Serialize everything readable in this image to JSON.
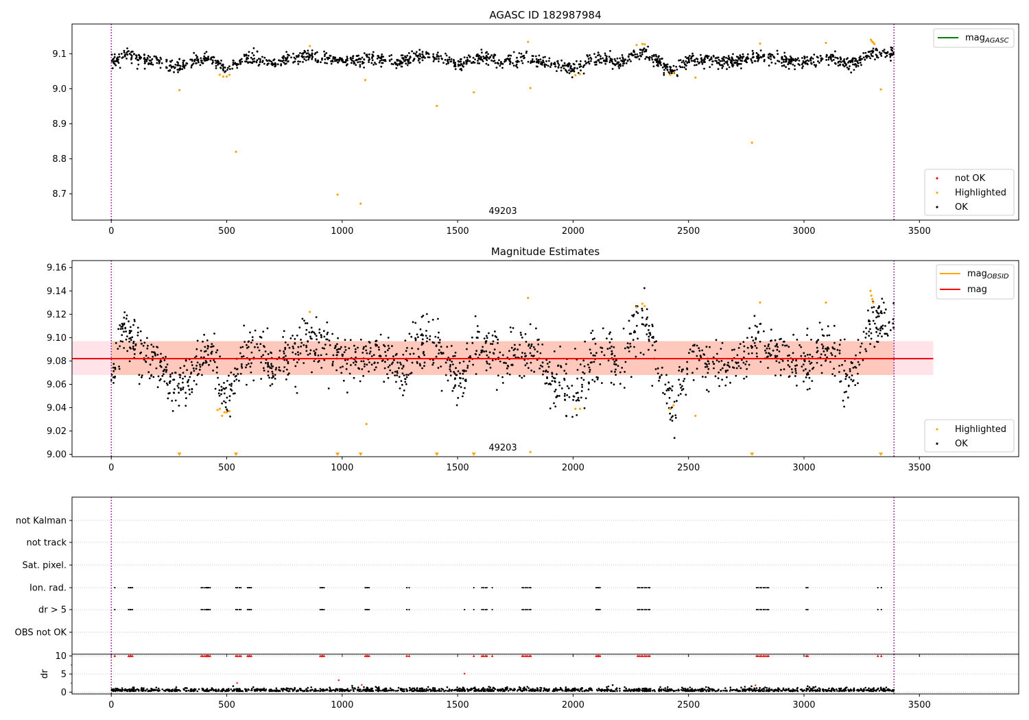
{
  "colors": {
    "ok": "#000000",
    "highlighted": "#ffa500",
    "not_ok": "#ff0000",
    "mag_agasc_line": "#008000",
    "mag_obsid_line": "#ffa500",
    "mag_line": "#ff0000",
    "vline": "#800080",
    "band_outer": "#ffc0cb",
    "band_inner": "#ffa07a"
  },
  "chart_data": [
    {
      "type": "scatter",
      "title": "AGASC ID 182987984",
      "xlim": [
        -170,
        3930
      ],
      "ylim": [
        8.625,
        9.185
      ],
      "xticks": [
        0,
        500,
        1000,
        1500,
        2000,
        2500,
        3000,
        3500
      ],
      "yticks": [
        8.7,
        8.8,
        8.9,
        9.0,
        9.1
      ],
      "ytick_labels": [
        "8.7",
        "8.8",
        "8.9",
        "9.0",
        "9.1"
      ],
      "annotation": "49203",
      "vlines": [
        0,
        3390
      ],
      "trend": [
        [
          0,
          9.072
        ],
        [
          60,
          9.102
        ],
        [
          120,
          9.085
        ],
        [
          200,
          9.078
        ],
        [
          280,
          9.062
        ],
        [
          360,
          9.075
        ],
        [
          430,
          9.088
        ],
        [
          500,
          9.055
        ],
        [
          540,
          9.072
        ],
        [
          600,
          9.09
        ],
        [
          700,
          9.075
        ],
        [
          860,
          9.093
        ],
        [
          950,
          9.083
        ],
        [
          1050,
          9.078
        ],
        [
          1150,
          9.088
        ],
        [
          1250,
          9.072
        ],
        [
          1320,
          9.092
        ],
        [
          1420,
          9.088
        ],
        [
          1500,
          9.068
        ],
        [
          1600,
          9.092
        ],
        [
          1700,
          9.078
        ],
        [
          1800,
          9.088
        ],
        [
          1900,
          9.07
        ],
        [
          2000,
          9.058
        ],
        [
          2080,
          9.078
        ],
        [
          2150,
          9.09
        ],
        [
          2200,
          9.074
        ],
        [
          2270,
          9.1
        ],
        [
          2320,
          9.102
        ],
        [
          2400,
          9.062
        ],
        [
          2440,
          9.052
        ],
        [
          2500,
          9.082
        ],
        [
          2600,
          9.078
        ],
        [
          2700,
          9.078
        ],
        [
          2800,
          9.092
        ],
        [
          2900,
          9.082
        ],
        [
          3000,
          9.078
        ],
        [
          3100,
          9.088
        ],
        [
          3200,
          9.068
        ],
        [
          3300,
          9.105
        ],
        [
          3390,
          9.098
        ]
      ],
      "ok_count": 1600,
      "ok_spread": 0.009,
      "highlighted": [
        [
          295,
          8.996
        ],
        [
          470,
          9.04
        ],
        [
          485,
          9.035
        ],
        [
          500,
          9.035
        ],
        [
          512,
          9.04
        ],
        [
          540,
          8.82
        ],
        [
          860,
          9.122
        ],
        [
          980,
          8.698
        ],
        [
          1080,
          8.672
        ],
        [
          1100,
          9.025
        ],
        [
          1410,
          8.951
        ],
        [
          1570,
          8.99
        ],
        [
          1805,
          9.134
        ],
        [
          1815,
          9.002
        ],
        [
          2010,
          9.039
        ],
        [
          2030,
          9.042
        ],
        [
          2275,
          9.125
        ],
        [
          2300,
          9.128
        ],
        [
          2310,
          9.127
        ],
        [
          2420,
          9.04
        ],
        [
          2435,
          9.045
        ],
        [
          2530,
          9.032
        ],
        [
          2775,
          8.846
        ],
        [
          2810,
          9.129
        ],
        [
          3095,
          9.131
        ],
        [
          3290,
          9.14
        ],
        [
          3295,
          9.135
        ],
        [
          3300,
          9.132
        ],
        [
          3305,
          9.128
        ],
        [
          3333,
          8.998
        ]
      ],
      "legend_lines": [
        {
          "name": "mag",
          "sub": "AGASC",
          "color": "#008000"
        }
      ],
      "legend_points": [
        "not OK",
        "Highlighted",
        "OK"
      ]
    },
    {
      "type": "scatter",
      "title": "Magnitude Estimates",
      "xlim": [
        -170,
        3930
      ],
      "ylim": [
        8.998,
        9.166
      ],
      "xticks": [
        0,
        500,
        1000,
        1500,
        2000,
        2500,
        3000,
        3500
      ],
      "yticks": [
        9.0,
        9.02,
        9.04,
        9.06,
        9.08,
        9.1,
        9.12,
        9.14,
        9.16
      ],
      "ytick_labels": [
        "9.00",
        "9.02",
        "9.04",
        "9.06",
        "9.08",
        "9.10",
        "9.12",
        "9.14",
        "9.16"
      ],
      "annotation": "49203",
      "vlines": [
        0,
        3390
      ],
      "mag": 9.082,
      "band_outer": {
        "x": [
          -170,
          3560
        ],
        "y": [
          9.068,
          9.097
        ]
      },
      "band_inner": {
        "x": [
          0,
          3390
        ],
        "y": [
          9.068,
          9.097
        ]
      },
      "ok_count": 1600,
      "ok_spread": 0.011,
      "highlighted": [
        [
          460,
          9.038
        ],
        [
          470,
          9.039
        ],
        [
          480,
          9.033
        ],
        [
          490,
          9.036
        ],
        [
          500,
          9.036
        ],
        [
          512,
          9.037
        ],
        [
          860,
          9.122
        ],
        [
          1105,
          9.026
        ],
        [
          1805,
          9.134
        ],
        [
          1815,
          9.002
        ],
        [
          2010,
          9.039
        ],
        [
          2030,
          9.039
        ],
        [
          2275,
          9.126
        ],
        [
          2300,
          9.129
        ],
        [
          2310,
          9.127
        ],
        [
          2420,
          9.039
        ],
        [
          2435,
          9.042
        ],
        [
          2530,
          9.033
        ],
        [
          2810,
          9.13
        ],
        [
          3095,
          9.13
        ],
        [
          3288,
          9.14
        ],
        [
          3292,
          9.136
        ],
        [
          3296,
          9.133
        ],
        [
          3300,
          9.13
        ]
      ],
      "highlighted_floor": [
        295,
        540,
        980,
        1080,
        1410,
        1570,
        2775,
        3333
      ],
      "legend_lines": [
        {
          "name": "mag",
          "sub": "OBSID",
          "color": "#ffa500"
        },
        {
          "name": "mag",
          "sub": "",
          "color": "#ff0000"
        }
      ],
      "legend_points": [
        "Highlighted",
        "OK"
      ]
    },
    {
      "type": "scatter",
      "title": "",
      "xlim": [
        -170,
        3930
      ],
      "categories": [
        "not Kalman",
        "not track",
        "Sat. pixel.",
        "Ion. rad.",
        "dr > 5",
        "OBS not OK"
      ],
      "vlines": [
        0,
        3390
      ],
      "flag_clusters": [
        [
          15,
          1
        ],
        [
          75,
          2
        ],
        [
          85,
          2
        ],
        [
          390,
          2
        ],
        [
          405,
          3
        ],
        [
          415,
          3
        ],
        [
          540,
          2
        ],
        [
          555,
          2
        ],
        [
          590,
          2
        ],
        [
          600,
          2
        ],
        [
          905,
          2
        ],
        [
          915,
          2
        ],
        [
          1100,
          2
        ],
        [
          1110,
          2
        ],
        [
          1280,
          1
        ],
        [
          1290,
          1
        ],
        [
          1570,
          1
        ],
        [
          1605,
          2
        ],
        [
          1620,
          2
        ],
        [
          1650,
          1
        ],
        [
          1780,
          2
        ],
        [
          1795,
          2
        ],
        [
          1810,
          2
        ],
        [
          2100,
          2
        ],
        [
          2110,
          2
        ],
        [
          2280,
          2
        ],
        [
          2295,
          2
        ],
        [
          2310,
          2
        ],
        [
          2325,
          2
        ],
        [
          2795,
          2
        ],
        [
          2810,
          2
        ],
        [
          2825,
          2
        ],
        [
          2840,
          2
        ],
        [
          3010,
          2
        ],
        [
          3320,
          1
        ],
        [
          3335,
          1
        ]
      ],
      "dr_only": [
        1530
      ]
    },
    {
      "type": "scatter",
      "title": "",
      "ylabel": "dr",
      "xlim": [
        -170,
        3930
      ],
      "ylim": [
        -0.5,
        10.5
      ],
      "xticks": [
        0,
        500,
        1000,
        1500,
        2000,
        2500,
        3000,
        3500
      ],
      "xtick_labels": [
        "0",
        "500",
        "1000",
        "1500",
        "2000",
        "2500",
        "3000",
        "3500"
      ],
      "yticks": [
        0,
        5,
        10
      ],
      "ytick_labels": [
        "0",
        "5",
        "10"
      ],
      "vlines": [
        0,
        3390
      ],
      "capped_value": 10,
      "outliers": [
        [
          545,
          2.5
        ],
        [
          985,
          3.3
        ],
        [
          1530,
          5.1
        ],
        [
          1085,
          2.0
        ],
        [
          2790,
          1.9
        ]
      ],
      "ok_count": 1500
    }
  ]
}
